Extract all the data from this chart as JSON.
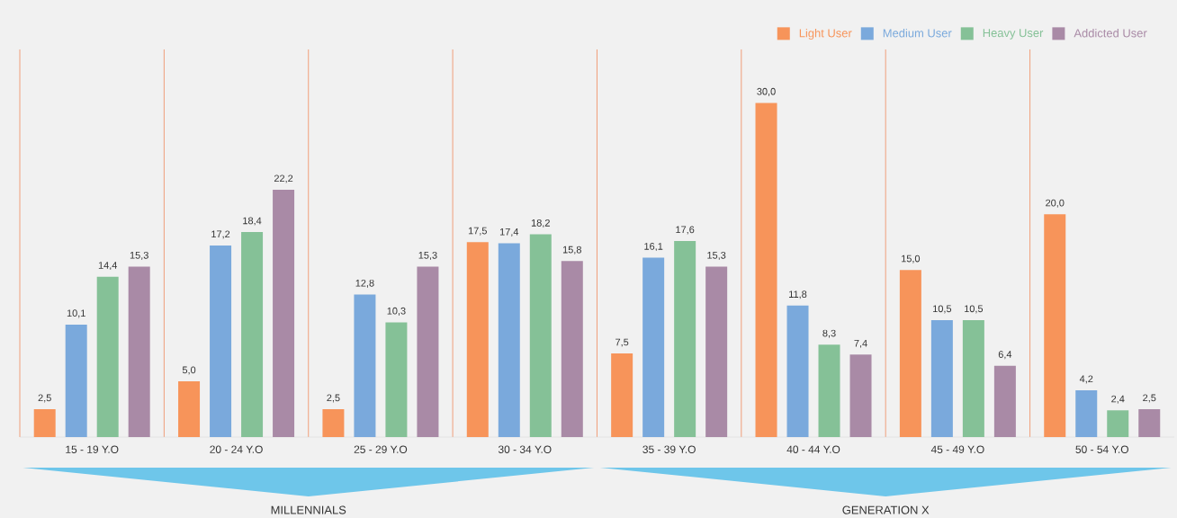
{
  "chart_data": {
    "type": "bar",
    "categories": [
      "15 - 19 Y.O",
      "20 - 24 Y.O",
      "25 - 29 Y.O",
      "30 - 34 Y.O",
      "35 - 39 Y.O",
      "40 - 44 Y.O",
      "45 - 49 Y.O",
      "50 - 54 Y.O"
    ],
    "series": [
      {
        "name": "Light User",
        "color": "#f7945a",
        "values": [
          2.5,
          5.0,
          2.5,
          17.5,
          7.5,
          30.0,
          15.0,
          20.0
        ],
        "value_labels": [
          "2,5",
          "5,0",
          "2,5",
          "17,5",
          "7,5",
          "30,0",
          "15,0",
          "20,0"
        ]
      },
      {
        "name": "Medium User",
        "color": "#7aa9dc",
        "values": [
          10.1,
          17.2,
          12.8,
          17.4,
          16.1,
          11.8,
          10.5,
          4.2
        ],
        "value_labels": [
          "10,1",
          "17,2",
          "12,8",
          "17,4",
          "16,1",
          "11,8",
          "10,5",
          "4,2"
        ]
      },
      {
        "name": "Heavy User",
        "color": "#85c197",
        "values": [
          14.4,
          18.4,
          10.3,
          18.2,
          17.6,
          8.3,
          10.5,
          2.4
        ],
        "value_labels": [
          "14,4",
          "18,4",
          "10,3",
          "18,2",
          "17,6",
          "8,3",
          "10,5",
          "2,4"
        ]
      },
      {
        "name": "Addicted User",
        "color": "#a98aa6",
        "values": [
          15.3,
          22.2,
          15.3,
          15.8,
          15.3,
          7.4,
          6.4,
          2.5
        ],
        "value_labels": [
          "15,3",
          "22,2",
          "15,3",
          "15,8",
          "15,3",
          "7,4",
          "6,4",
          "2,5"
        ]
      }
    ],
    "annotations": [
      "MILLENNIALS",
      "GENERATION X"
    ],
    "legend": "top right",
    "grid": "x",
    "tick_labels": "x"
  }
}
